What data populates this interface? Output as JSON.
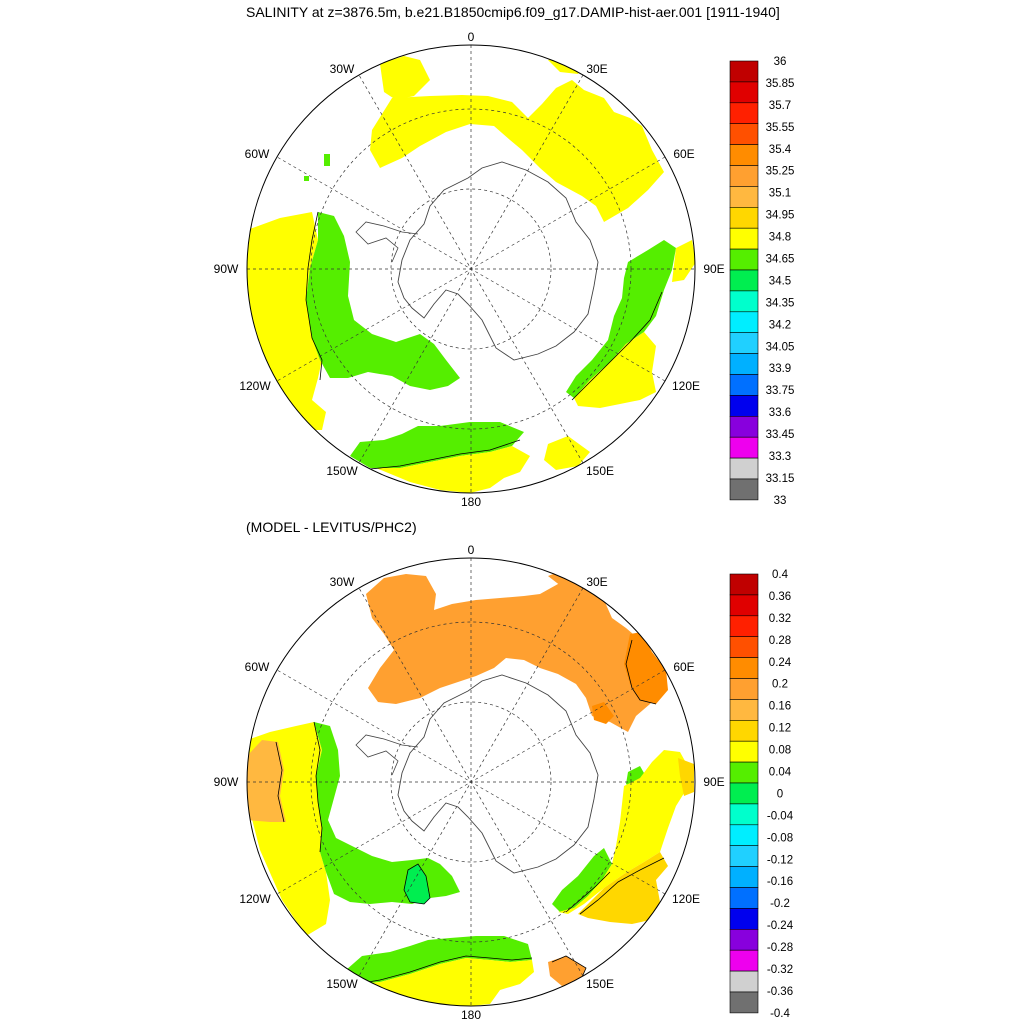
{
  "top_panel": {
    "title": "SALINITY at z=3876.5m, b.e21.B1850cmip6.f09_g17.DAMIP-hist-aer.001 [1911-1940]",
    "longitude_labels": [
      "0",
      "30E",
      "60E",
      "90E",
      "120E",
      "150E",
      "180",
      "150W",
      "120W",
      "90W",
      "60W",
      "30W"
    ],
    "colorbar": {
      "labels": [
        "36",
        "35.85",
        "35.7",
        "35.55",
        "35.4",
        "35.25",
        "35.1",
        "34.95",
        "34.8",
        "34.65",
        "34.5",
        "34.35",
        "34.2",
        "34.05",
        "33.9",
        "33.75",
        "33.6",
        "33.45",
        "33.3",
        "33.15",
        "33"
      ],
      "colors": [
        "#c00000",
        "#e00000",
        "#ff2000",
        "#ff5000",
        "#ff8c00",
        "#ffa030",
        "#ffb840",
        "#ffd700",
        "#ffff00",
        "#55ee00",
        "#00ee50",
        "#00ffcc",
        "#00eeff",
        "#20d0ff",
        "#00b0ff",
        "#0070ff",
        "#0000ee",
        "#8800dd",
        "#ee00ee",
        "#d0d0d0",
        "#707070"
      ]
    }
  },
  "bottom_panel": {
    "title": "(MODEL - LEVITUS/PHC2)",
    "longitude_labels": [
      "0",
      "30E",
      "60E",
      "90E",
      "120E",
      "150E",
      "180",
      "150W",
      "120W",
      "90W",
      "60W",
      "30W"
    ],
    "colorbar": {
      "labels": [
        "0.4",
        "0.36",
        "0.32",
        "0.28",
        "0.24",
        "0.2",
        "0.16",
        "0.12",
        "0.08",
        "0.04",
        "0",
        "-0.04",
        "-0.08",
        "-0.12",
        "-0.16",
        "-0.2",
        "-0.24",
        "-0.28",
        "-0.32",
        "-0.36",
        "-0.4"
      ],
      "colors": [
        "#c00000",
        "#e00000",
        "#ff2000",
        "#ff5000",
        "#ff8c00",
        "#ffa030",
        "#ffb840",
        "#ffd700",
        "#ffff00",
        "#55ee00",
        "#00ee50",
        "#00ffcc",
        "#00eeff",
        "#20d0ff",
        "#00b0ff",
        "#0070ff",
        "#0000ee",
        "#8800dd",
        "#ee00ee",
        "#d0d0d0",
        "#707070"
      ]
    }
  },
  "map_colors": {
    "yellow": "#ffff00",
    "gold": "#ffd700",
    "light_orange": "#ffb840",
    "orange": "#ffa030",
    "dark_orange": "#ff8c00",
    "green": "#55ee00",
    "spring_green": "#00ee50",
    "coast": "#444444"
  }
}
